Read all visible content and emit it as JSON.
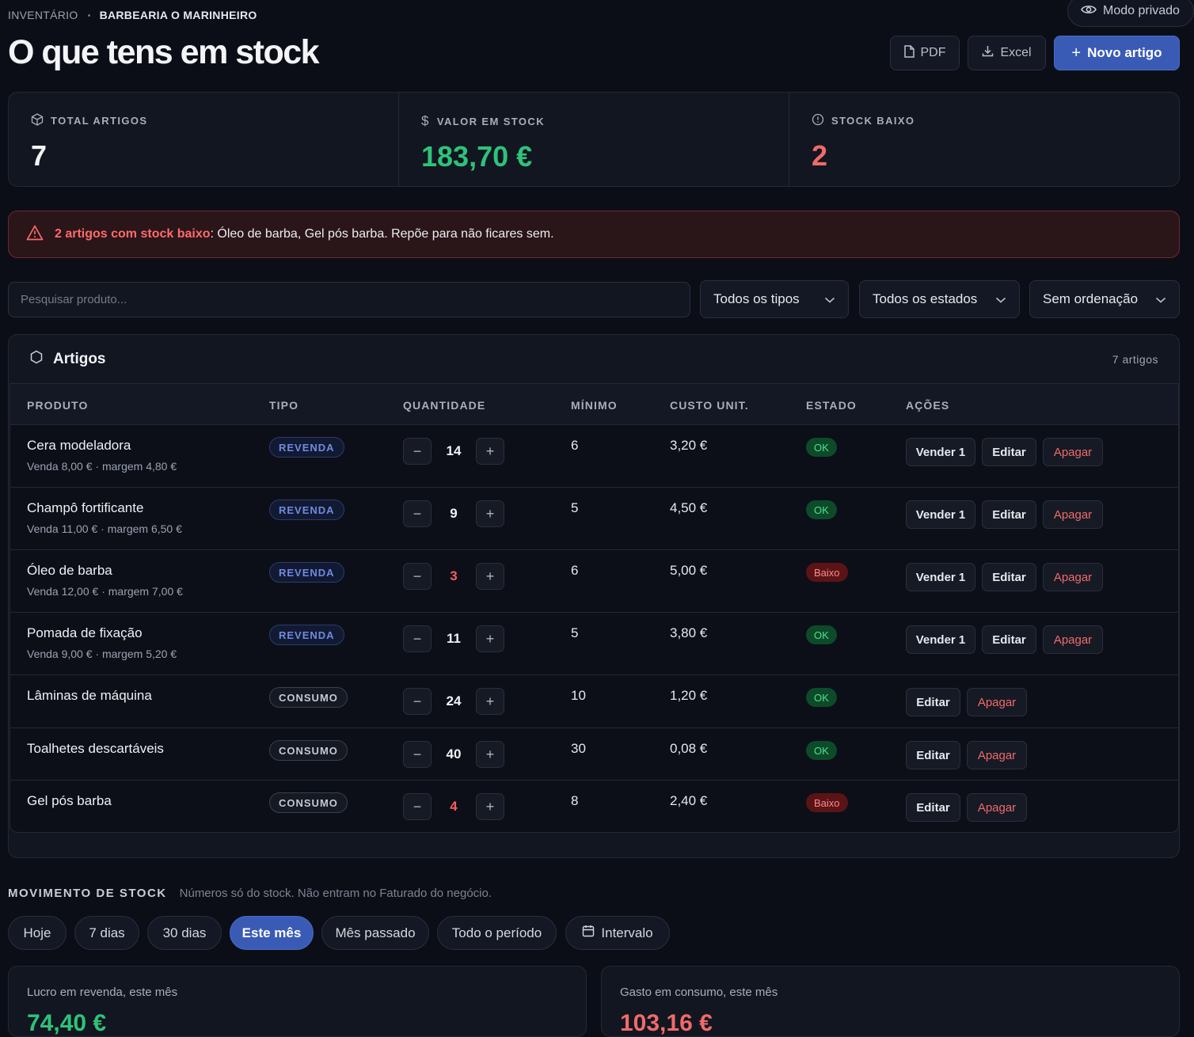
{
  "header": {
    "breadcrumb_1": "INVENTÁRIO",
    "breadcrumb_2": "BARBEARIA O MARINHEIRO",
    "title": "O que tens em stock",
    "privacy_mode": "Modo privado",
    "pdf_label": "PDF",
    "excel_label": "Excel",
    "new_item_label": "Novo artigo"
  },
  "stats": {
    "total_label": "TOTAL ARTIGOS",
    "total_value": "7",
    "value_label": "VALOR EM STOCK",
    "value_value": "183,70 €",
    "low_label": "STOCK BAIXO",
    "low_value": "2"
  },
  "alert": {
    "strong": "2 artigos com stock baixo",
    "text": ": Óleo de barba, Gel pós barba. Repõe para não ficares sem."
  },
  "filters": {
    "search_placeholder": "Pesquisar produto...",
    "type": "Todos os tipos",
    "status": "Todos os estados",
    "sort": "Sem ordenação"
  },
  "table": {
    "title": "Artigos",
    "count": "7 artigos",
    "columns": {
      "product": "PRODUTO",
      "type": "TIPO",
      "quantity": "QUANTIDADE",
      "minimum": "MÍNIMO",
      "unit_cost": "CUSTO UNIT.",
      "status": "ESTADO",
      "actions": "AÇÕES"
    },
    "rows": [
      {
        "name": "Cera modeladora",
        "sub": "Venda 8,00 € · margem 4,80 €",
        "type": "REVENDA",
        "qty": "14",
        "min": "6",
        "cost": "3,20 €",
        "status": "OK",
        "sell": "Vender 1",
        "edit": "Editar",
        "delete": "Apagar"
      },
      {
        "name": "Champô fortificante",
        "sub": "Venda 11,00 € · margem 6,50 €",
        "type": "REVENDA",
        "qty": "9",
        "min": "5",
        "cost": "4,50 €",
        "status": "OK",
        "sell": "Vender 1",
        "edit": "Editar",
        "delete": "Apagar"
      },
      {
        "name": "Óleo de barba",
        "sub": "Venda 12,00 € · margem 7,00 €",
        "type": "REVENDA",
        "qty": "3",
        "min": "6",
        "cost": "5,00 €",
        "status": "Baixo",
        "sell": "Vender 1",
        "edit": "Editar",
        "delete": "Apagar"
      },
      {
        "name": "Pomada de fixação",
        "sub": "Venda 9,00 € · margem 5,20 €",
        "type": "REVENDA",
        "qty": "11",
        "min": "5",
        "cost": "3,80 €",
        "status": "OK",
        "sell": "Vender 1",
        "edit": "Editar",
        "delete": "Apagar"
      },
      {
        "name": "Lâminas de máquina",
        "type": "CONSUMO",
        "qty": "24",
        "min": "10",
        "cost": "1,20 €",
        "status": "OK",
        "edit": "Editar",
        "delete": "Apagar"
      },
      {
        "name": "Toalhetes descartáveis",
        "type": "CONSUMO",
        "qty": "40",
        "min": "30",
        "cost": "0,08 €",
        "status": "OK",
        "edit": "Editar",
        "delete": "Apagar"
      },
      {
        "name": "Gel pós barba",
        "type": "CONSUMO",
        "qty": "4",
        "min": "8",
        "cost": "2,40 €",
        "status": "Baixo",
        "edit": "Editar",
        "delete": "Apagar"
      }
    ]
  },
  "movement": {
    "title": "MOVIMENTO DE STOCK",
    "note": "Números só do stock. Não entram no Faturado do negócio.",
    "chips": [
      "Hoje",
      "7 dias",
      "30 dias",
      "Este mês",
      "Mês passado",
      "Todo o período",
      "Intervalo"
    ],
    "active_chip": "Este mês",
    "profit_label": "Lucro em revenda, este mês",
    "profit_value": "74,40 €",
    "spend_label": "Gasto em consumo, este mês",
    "spend_value": "103,16 €"
  },
  "colors": {
    "accent": "#3a5bb5",
    "positive": "#2fc27a",
    "negative": "#f06a6a"
  }
}
